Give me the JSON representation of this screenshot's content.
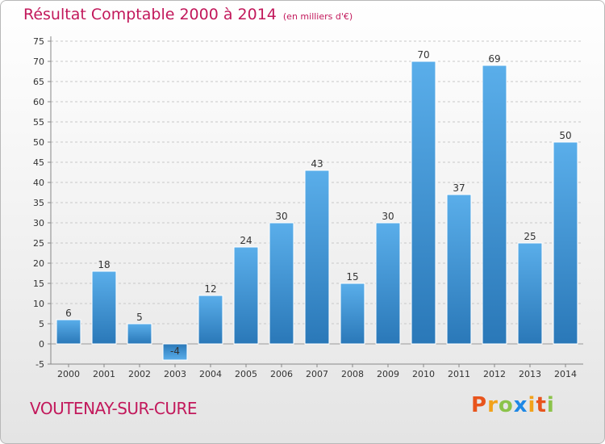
{
  "header": {
    "title": "Résultat Comptable 2000 à 2014",
    "unit": "(en milliers d'€)"
  },
  "footer": {
    "place": "VOUTENAY-SUR-CURE",
    "logo_letters": [
      "P",
      "r",
      "o",
      "x",
      "i",
      "t",
      "i"
    ],
    "logo_colors": [
      "#e8541c",
      "#f2a21a",
      "#8bc34a",
      "#1e88e5",
      "#f2a21a",
      "#e8541c",
      "#8bc34a"
    ]
  },
  "colors": {
    "bar_top": "#5aaeea",
    "bar_bottom": "#2a78b8",
    "grid": "#c8c8c8",
    "accent": "#c2185b"
  },
  "chart_data": {
    "type": "bar",
    "title": "Résultat Comptable 2000 à 2014",
    "subtitle": "(en milliers d'€)",
    "xlabel": "",
    "ylabel": "",
    "categories": [
      "2000",
      "2001",
      "2002",
      "2003",
      "2004",
      "2005",
      "2006",
      "2007",
      "2008",
      "2009",
      "2010",
      "2011",
      "2012",
      "2013",
      "2014"
    ],
    "values": [
      6,
      18,
      5,
      -4,
      12,
      24,
      30,
      43,
      15,
      30,
      70,
      37,
      69,
      25,
      50
    ],
    "ylim": [
      -5,
      75
    ],
    "yticks": [
      -5,
      0,
      5,
      10,
      15,
      20,
      25,
      30,
      35,
      40,
      45,
      50,
      55,
      60,
      65,
      70,
      75
    ],
    "grid": true,
    "legend": "none"
  }
}
